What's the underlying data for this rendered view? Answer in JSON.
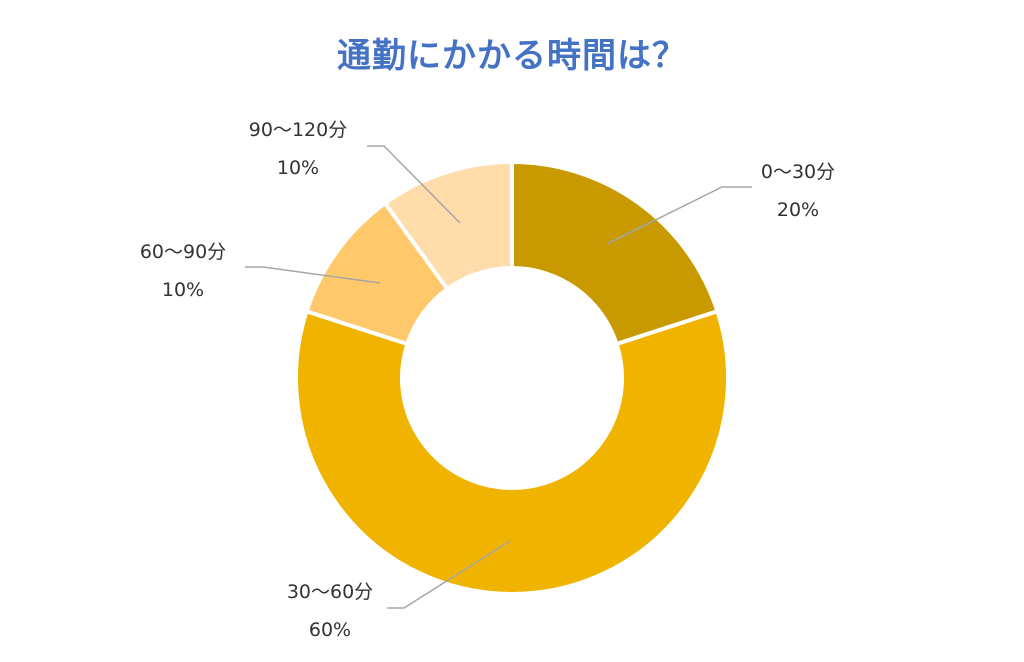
{
  "chart_data": {
    "type": "pie",
    "style": "donut",
    "title": "通勤にかかる時間は？",
    "categories": [
      "0〜30分",
      "30〜60分",
      "60〜90分",
      "90〜120分"
    ],
    "values": [
      20,
      60,
      10,
      10
    ],
    "value_labels": [
      "20%",
      "60%",
      "10%",
      "10%"
    ],
    "colors": [
      "#c99a00",
      "#f0b400",
      "#ffc96b",
      "#ffdcaa"
    ],
    "legend": "none",
    "data_labels": "outside-with-leader-lines"
  }
}
